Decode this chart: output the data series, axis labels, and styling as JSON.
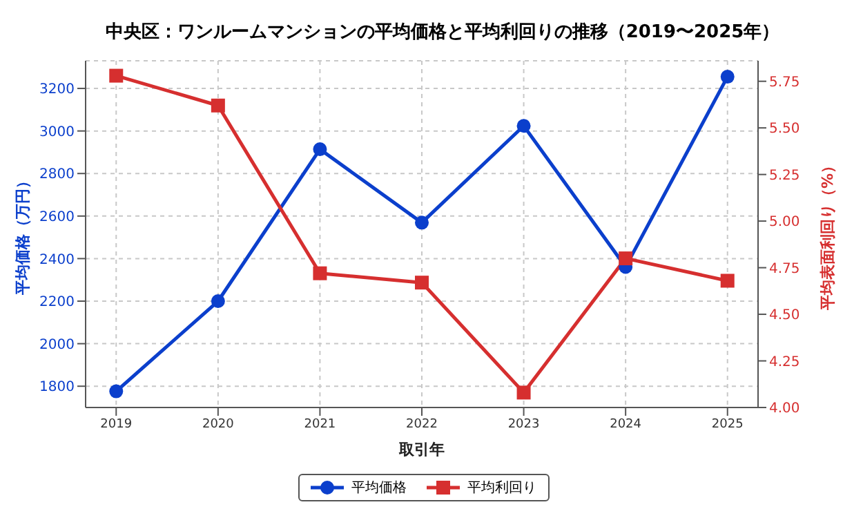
{
  "chart_data": {
    "type": "line",
    "title": "中央区：ワンルームマンションの平均価格と平均利回りの推移（2019〜2025年）",
    "xlabel": "取引年",
    "ylabel": "平均価格（万円）",
    "y2label": "平均表面利回り（%）",
    "x": [
      2019,
      2020,
      2021,
      2022,
      2023,
      2024,
      2025
    ],
    "series": [
      {
        "name": "平均価格",
        "color": "#0b3fcc",
        "values": [
          1776,
          2200,
          2914,
          2569,
          3024,
          2361,
          3255
        ],
        "marker": "circle"
      },
      {
        "name": "平均利回り",
        "color": "#d62f2f",
        "axis": "y2",
        "values": [
          5.78,
          5.62,
          4.72,
          4.67,
          4.08,
          4.8,
          4.68
        ],
        "marker": "square"
      }
    ],
    "xlim": [
      2018.7,
      2025.3
    ],
    "xticks": [
      2019,
      2020,
      2021,
      2022,
      2023,
      2024,
      2025
    ],
    "ylim": [
      1700,
      3330
    ],
    "yticks": [
      1800,
      2000,
      2200,
      2400,
      2600,
      2800,
      3000,
      3200
    ],
    "y2lim": [
      4.0,
      5.86
    ],
    "y2ticks": [
      {
        "value": 4,
        "label": "4.00"
      },
      {
        "value": 4.25,
        "label": "4.25"
      },
      {
        "value": 4.5,
        "label": "4.50"
      },
      {
        "value": 4.75,
        "label": "4.75"
      },
      {
        "value": 5,
        "label": "5.00"
      },
      {
        "value": 5.25,
        "label": "5.25"
      },
      {
        "value": 5.5,
        "label": "5.50"
      },
      {
        "value": 5.75,
        "label": "5.75"
      }
    ],
    "grid": true,
    "legend": "bottom",
    "line_style": "solid"
  }
}
